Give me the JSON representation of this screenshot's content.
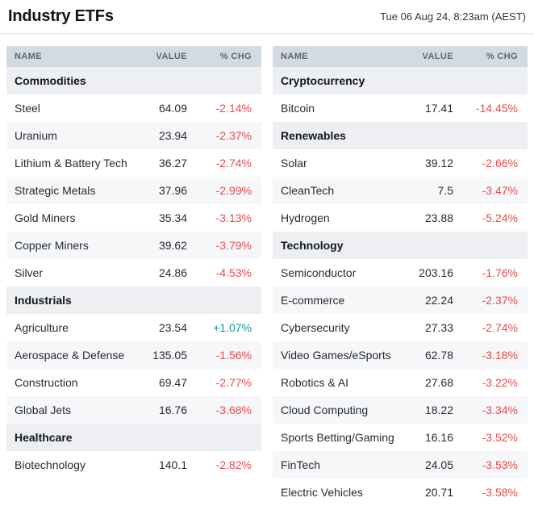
{
  "page": {
    "title": "Industry ETFs",
    "timestamp": "Tue 06 Aug 24, 8:23am (AEST)"
  },
  "columns": {
    "name": "NAME",
    "value": "VALUE",
    "chg": "% CHG"
  },
  "colors": {
    "header_bg": "#d4dae1",
    "section_bg": "#edeff2",
    "stripe_bg": "#f6f7f9",
    "negative": "#e64c4c",
    "positive": "#0c9a8d"
  },
  "tables": [
    {
      "id": "left",
      "sections": [
        {
          "title": "Commodities",
          "rows": [
            {
              "name": "Steel",
              "value": "64.09",
              "chg": "-2.14%"
            },
            {
              "name": "Uranium",
              "value": "23.94",
              "chg": "-2.37%"
            },
            {
              "name": "Lithium & Battery Tech",
              "value": "36.27",
              "chg": "-2.74%"
            },
            {
              "name": "Strategic Metals",
              "value": "37.96",
              "chg": "-2.99%"
            },
            {
              "name": "Gold Miners",
              "value": "35.34",
              "chg": "-3.13%"
            },
            {
              "name": "Copper Miners",
              "value": "39.62",
              "chg": "-3.79%"
            },
            {
              "name": "Silver",
              "value": "24.86",
              "chg": "-4.53%"
            }
          ]
        },
        {
          "title": "Industrials",
          "rows": [
            {
              "name": "Agriculture",
              "value": "23.54",
              "chg": "+1.07%"
            },
            {
              "name": "Aerospace & Defense",
              "value": "135.05",
              "chg": "-1.56%"
            },
            {
              "name": "Construction",
              "value": "69.47",
              "chg": "-2.77%"
            },
            {
              "name": "Global Jets",
              "value": "16.76",
              "chg": "-3.68%"
            }
          ]
        },
        {
          "title": "Healthcare",
          "rows": [
            {
              "name": "Biotechnology",
              "value": "140.1",
              "chg": "-2.82%"
            }
          ]
        }
      ]
    },
    {
      "id": "right",
      "sections": [
        {
          "title": "Cryptocurrency",
          "rows": [
            {
              "name": "Bitcoin",
              "value": "17.41",
              "chg": "-14.45%"
            }
          ]
        },
        {
          "title": "Renewables",
          "rows": [
            {
              "name": "Solar",
              "value": "39.12",
              "chg": "-2.66%"
            },
            {
              "name": "CleanTech",
              "value": "7.5",
              "chg": "-3.47%"
            },
            {
              "name": "Hydrogen",
              "value": "23.88",
              "chg": "-5.24%"
            }
          ]
        },
        {
          "title": "Technology",
          "rows": [
            {
              "name": "Semiconductor",
              "value": "203.16",
              "chg": "-1.76%"
            },
            {
              "name": "E-commerce",
              "value": "22.24",
              "chg": "-2.37%"
            },
            {
              "name": "Cybersecurity",
              "value": "27.33",
              "chg": "-2.74%"
            },
            {
              "name": "Video Games/eSports",
              "value": "62.78",
              "chg": "-3.18%"
            },
            {
              "name": "Robotics & AI",
              "value": "27.68",
              "chg": "-3.22%"
            },
            {
              "name": "Cloud Computing",
              "value": "18.22",
              "chg": "-3.34%"
            },
            {
              "name": "Sports Betting/Gaming",
              "value": "16.16",
              "chg": "-3.52%"
            },
            {
              "name": "FinTech",
              "value": "24.05",
              "chg": "-3.53%"
            },
            {
              "name": "Electric Vehicles",
              "value": "20.71",
              "chg": "-3.58%"
            }
          ]
        }
      ]
    }
  ]
}
